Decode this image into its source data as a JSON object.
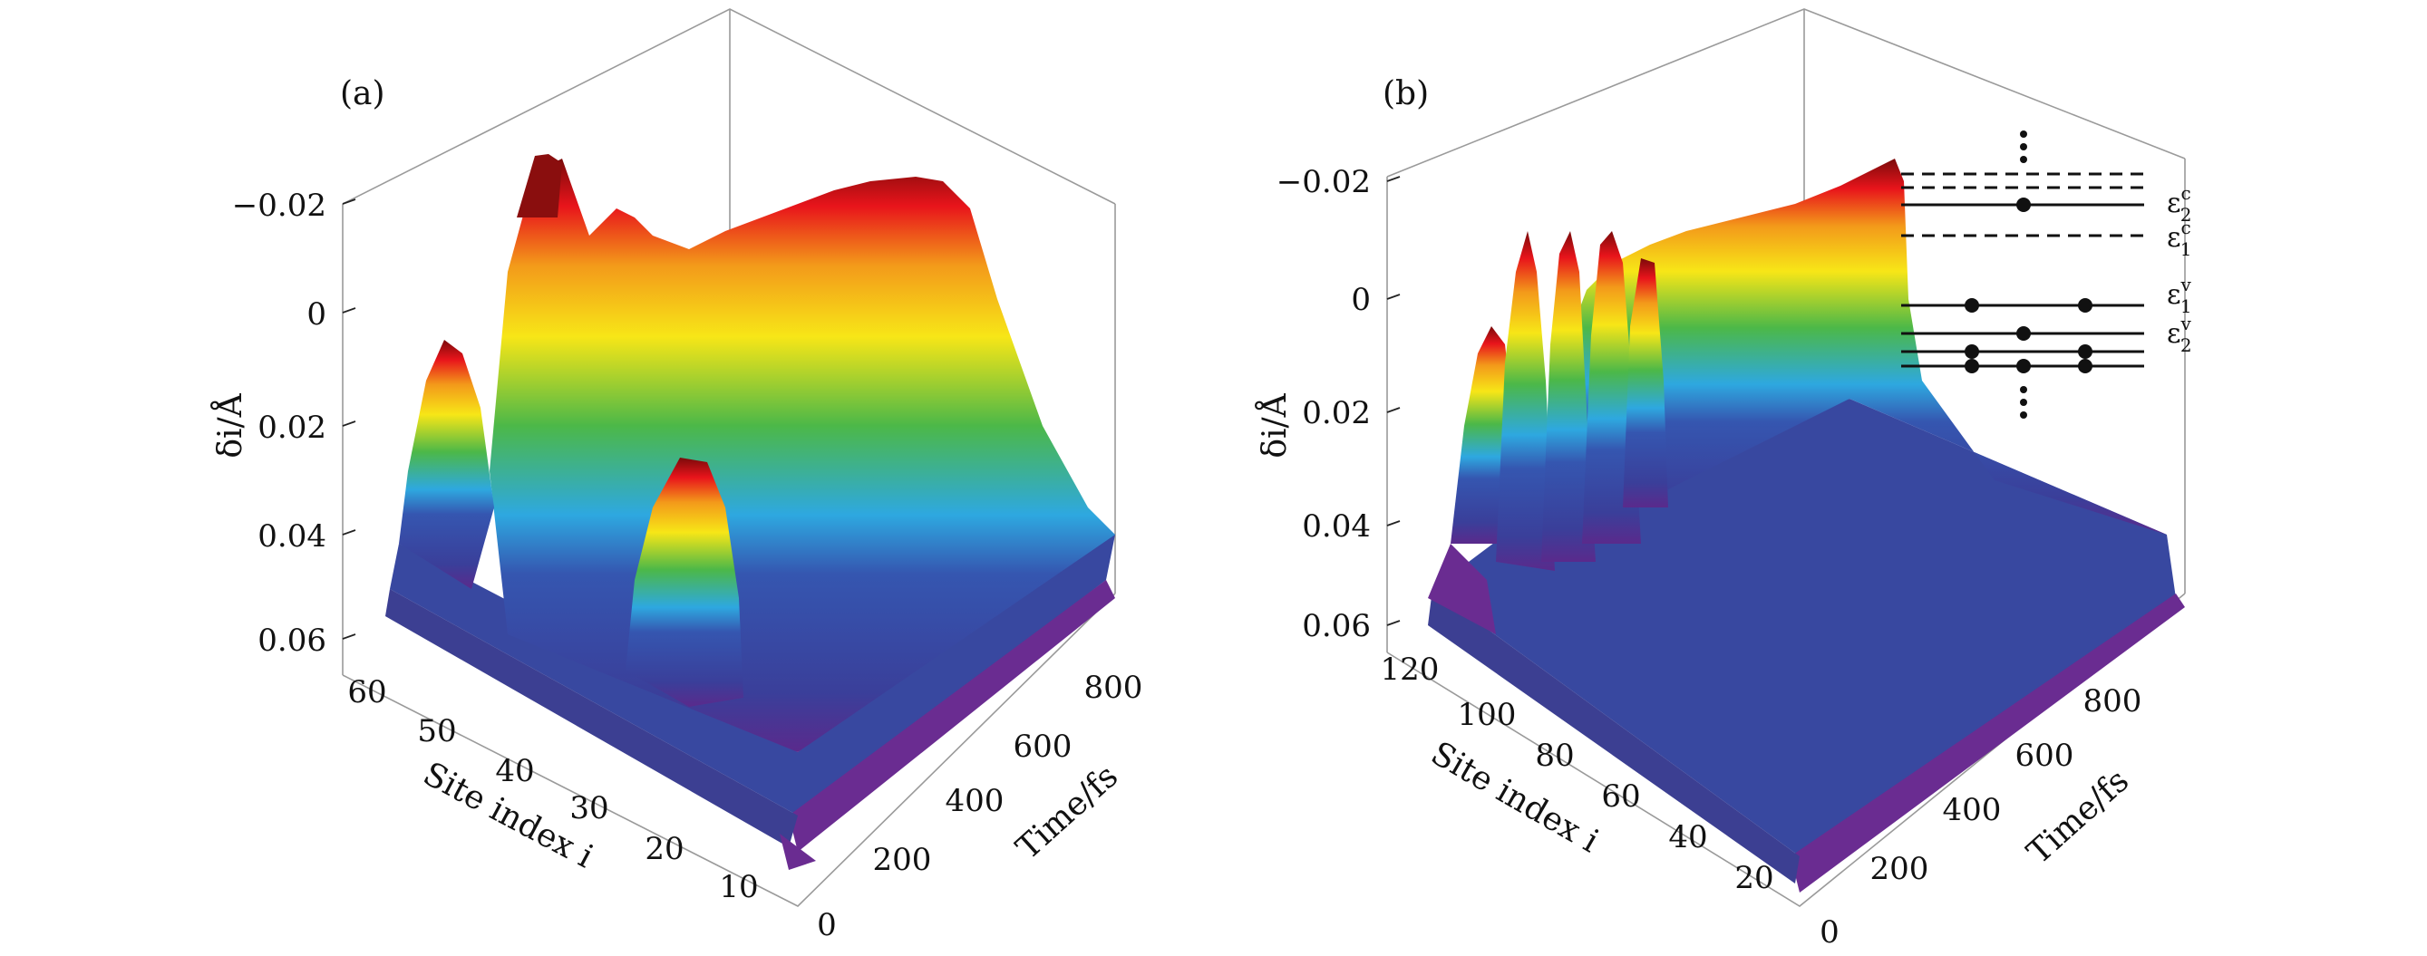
{
  "chart_data": [
    {
      "type": "surface",
      "panel": "(a)",
      "xlabel": "Time/fs",
      "ylabel": "Site index i",
      "zlabel": "δi/Å",
      "x_ticks": [
        "0",
        "200",
        "400",
        "600",
        "800"
      ],
      "y_ticks": [
        "10",
        "20",
        "30",
        "40",
        "50",
        "60"
      ],
      "z_ticks": [
        "−0.02",
        "0",
        "0.02",
        "0.04",
        "0.06"
      ],
      "xlim": [
        0,
        900
      ],
      "ylim": [
        1,
        60
      ],
      "zlim": [
        0.065,
        -0.025
      ],
      "z_axis_inverted": true,
      "colormap": "rainbow",
      "features": [
        {
          "description_x": 20,
          "site": 50,
          "delta": 0.0
        },
        {
          "description_x": 150,
          "site": 40,
          "delta": -0.025
        },
        {
          "description_x": 800,
          "site": 30,
          "delta": -0.015
        },
        {
          "description_x": 600,
          "site": 30,
          "delta": 0.022
        }
      ]
    },
    {
      "type": "surface",
      "panel": "(b)",
      "xlabel": "Time/fs",
      "ylabel": "Site index i",
      "zlabel": "δi/Å",
      "x_ticks": [
        "0",
        "200",
        "400",
        "600",
        "800"
      ],
      "y_ticks": [
        "20",
        "40",
        "60",
        "80",
        "100",
        "120"
      ],
      "z_ticks": [
        "−0.02",
        "0",
        "0.02",
        "0.04",
        "0.06"
      ],
      "xlim": [
        0,
        900
      ],
      "ylim": [
        1,
        120
      ],
      "zlim": [
        0.065,
        -0.025
      ],
      "z_axis_inverted": true,
      "colormap": "rainbow",
      "inset": {
        "levels": [
          {
            "label": "ε2c",
            "base": "ε",
            "sub": "2",
            "sup": "c",
            "style": "solid",
            "electrons": 1
          },
          {
            "label": "ε1c",
            "base": "ε",
            "sub": "1",
            "sup": "c",
            "style": "dashed",
            "electrons": 0
          },
          {
            "label": "ε1v",
            "base": "ε",
            "sub": "1",
            "sup": "v",
            "style": "solid",
            "electrons": 2
          },
          {
            "label": "ε2v",
            "base": "ε",
            "sub": "2",
            "sup": "v",
            "style": "solid",
            "electrons": 3
          }
        ]
      }
    }
  ],
  "panels": {
    "a": {
      "label": "(a)"
    },
    "b": {
      "label": "(b)"
    }
  },
  "colors": {
    "low": "#3a3f9a",
    "mid_low": "#2ea8e0",
    "mid": "#4cb848",
    "mid_high": "#f7e617",
    "high": "#e8141b",
    "peak": "#7a0a0a",
    "edge": "#6a2c91"
  }
}
